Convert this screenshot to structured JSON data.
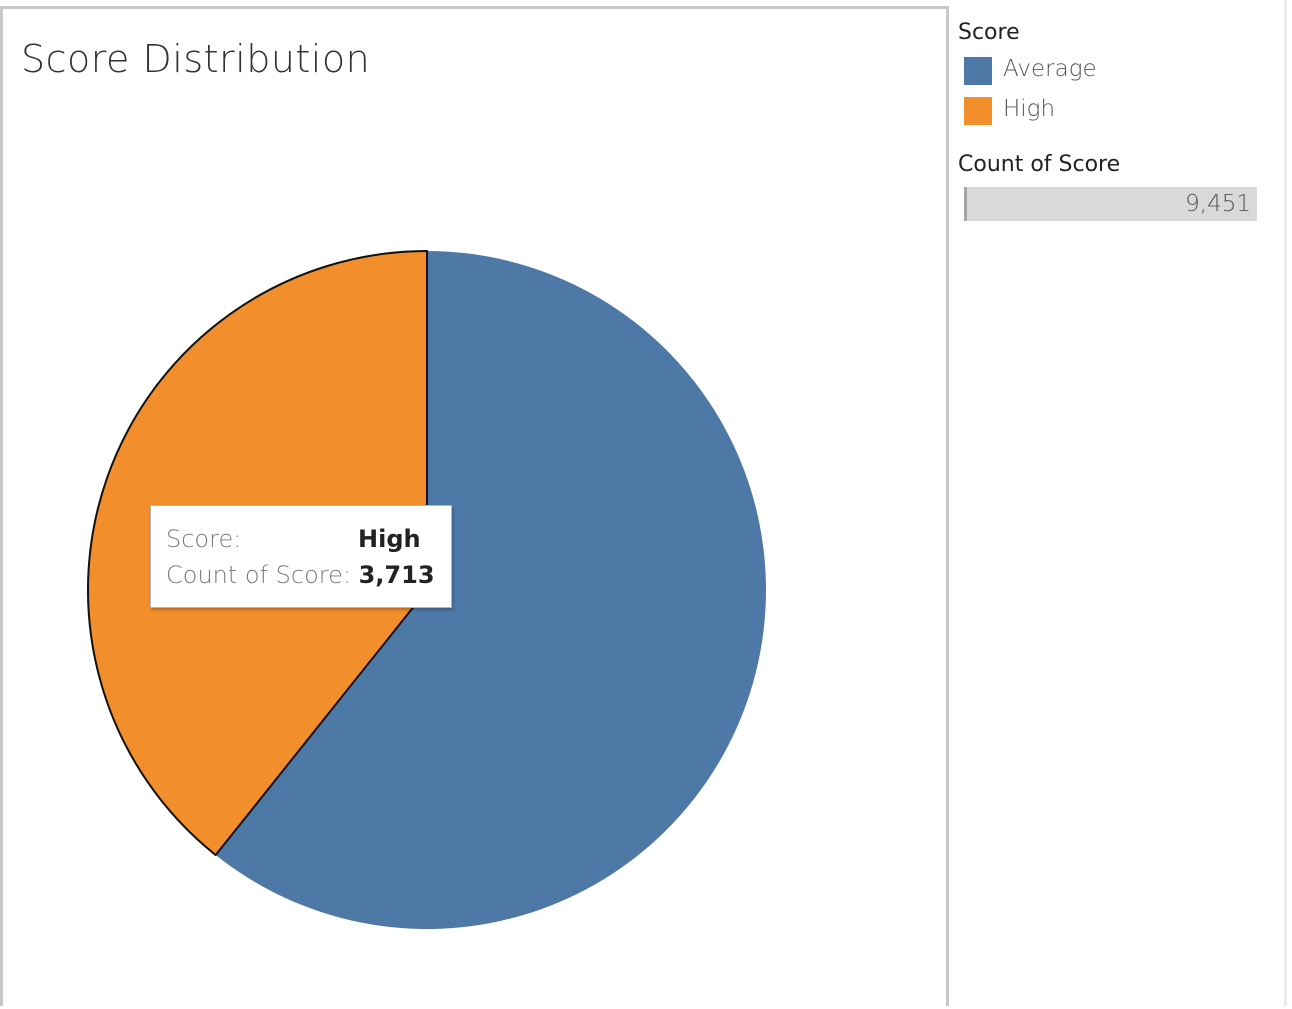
{
  "chart_data": {
    "type": "pie",
    "title": "Score Distribution",
    "slices": [
      {
        "label": "Average",
        "value": 5738,
        "color": "#4e79a7"
      },
      {
        "label": "High",
        "value": 3713,
        "color": "#f28e2b"
      }
    ],
    "total": 9451
  },
  "legend": {
    "title": "Score",
    "items": [
      {
        "label": "Average",
        "color": "#4e79a7"
      },
      {
        "label": "High",
        "color": "#f28e2b"
      }
    ]
  },
  "count_filter": {
    "title": "Count of Score",
    "value": "9,451"
  },
  "tooltip": {
    "score_label": "Score:",
    "score_value": "High",
    "count_label": "Count of Score:",
    "count_value": "3,713"
  }
}
